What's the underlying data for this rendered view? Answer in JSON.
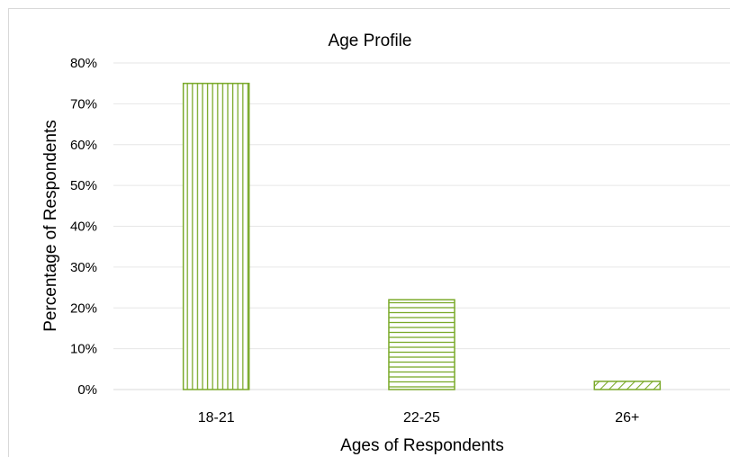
{
  "chart_data": {
    "type": "bar",
    "title": "Age Profile",
    "xlabel": "Ages of Respondents",
    "ylabel": "Percentage of Respondents",
    "categories": [
      "18-21",
      "22-25",
      "26+"
    ],
    "values": [
      75,
      22,
      2
    ],
    "unit": "%",
    "ylim": [
      0,
      80
    ],
    "yticks": [
      0,
      10,
      20,
      30,
      40,
      50,
      60,
      70,
      80
    ],
    "ytick_labels": [
      "0%",
      "10%",
      "20%",
      "30%",
      "40%",
      "50%",
      "60%",
      "70%",
      "80%"
    ],
    "grid": true,
    "legend": "none",
    "bar_color": "#7aa92a",
    "bar_patterns": [
      "vertical-lines",
      "horizontal-lines",
      "diagonal-lines"
    ]
  }
}
